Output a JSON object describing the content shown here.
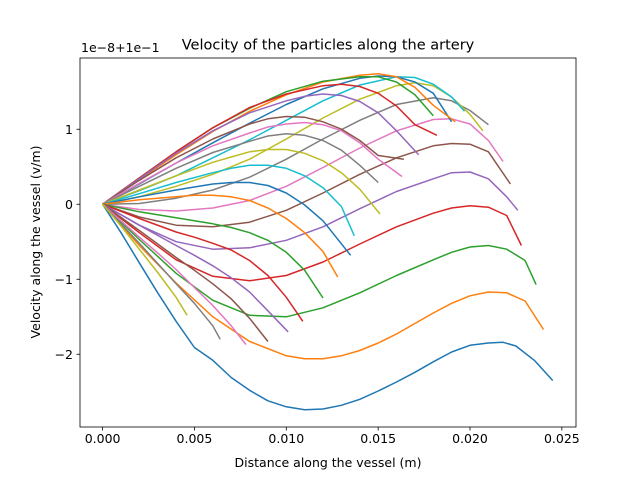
{
  "chart_data": {
    "type": "line",
    "title": "Velocity of the particles along the artery",
    "xlabel": "Distance along the vessel (m)",
    "ylabel": "Velocity along the vessel (v/m)",
    "offset_label": "1e−8+1e−1",
    "xlim": [
      -0.00123,
      0.02577
    ],
    "ylim": [
      -2.97,
      1.95
    ],
    "x_ticks": [
      0.0,
      0.005,
      0.01,
      0.015,
      0.02,
      0.025
    ],
    "x_tick_labels": [
      "0.000",
      "0.005",
      "0.010",
      "0.015",
      "0.020",
      "0.025"
    ],
    "y_ticks": [
      -2,
      -1,
      0,
      1
    ],
    "y_tick_labels": [
      "−2",
      "−1",
      "0",
      "1"
    ],
    "grid": false,
    "colors": {
      "C0": "#1f77b4",
      "C1": "#ff7f0e",
      "C2": "#2ca02c",
      "C3": "#d62728",
      "C4": "#9467bd",
      "C5": "#8c564b",
      "C6": "#e377c2",
      "C7": "#7f7f7f",
      "C8": "#bcbd22",
      "C9": "#17becf"
    },
    "series": [
      {
        "color": "C0",
        "x": [
          0,
          0.001,
          0.002,
          0.003,
          0.004,
          0.005,
          0.006,
          0.007,
          0.008,
          0.009,
          0.01,
          0.011,
          0.012,
          0.013,
          0.014,
          0.015,
          0.016,
          0.017,
          0.018,
          0.019,
          0.02,
          0.021,
          0.0218,
          0.0225,
          0.0235,
          0.0245
        ],
        "y": [
          0,
          -0.38,
          -0.78,
          -1.18,
          -1.56,
          -1.91,
          -2.08,
          -2.31,
          -2.48,
          -2.62,
          -2.7,
          -2.74,
          -2.73,
          -2.68,
          -2.6,
          -2.49,
          -2.37,
          -2.24,
          -2.1,
          -1.97,
          -1.88,
          -1.85,
          -1.84,
          -1.89,
          -2.08,
          -2.35
        ]
      },
      {
        "color": "C1",
        "x": [
          0,
          0.002,
          0.004,
          0.006,
          0.008,
          0.01,
          0.011,
          0.012,
          0.013,
          0.014,
          0.015,
          0.016,
          0.017,
          0.018,
          0.019,
          0.02,
          0.021,
          0.022,
          0.023,
          0.024
        ],
        "y": [
          0,
          -0.55,
          -1.05,
          -1.5,
          -1.83,
          -2.02,
          -2.06,
          -2.06,
          -2.02,
          -1.95,
          -1.85,
          -1.73,
          -1.59,
          -1.45,
          -1.32,
          -1.22,
          -1.17,
          -1.18,
          -1.29,
          -1.67
        ]
      },
      {
        "color": "C2",
        "x": [
          0,
          0.002,
          0.004,
          0.006,
          0.008,
          0.01,
          0.012,
          0.014,
          0.016,
          0.018,
          0.019,
          0.02,
          0.021,
          0.022,
          0.023,
          0.0236
        ],
        "y": [
          0,
          -0.47,
          -0.92,
          -1.28,
          -1.48,
          -1.5,
          -1.38,
          -1.18,
          -0.95,
          -0.74,
          -0.64,
          -0.57,
          -0.55,
          -0.6,
          -0.75,
          -1.07
        ]
      },
      {
        "color": "C3",
        "x": [
          0,
          0.002,
          0.004,
          0.006,
          0.008,
          0.01,
          0.012,
          0.014,
          0.016,
          0.018,
          0.019,
          0.02,
          0.021,
          0.022,
          0.0228
        ],
        "y": [
          0,
          -0.38,
          -0.74,
          -0.96,
          -1.02,
          -0.95,
          -0.77,
          -0.53,
          -0.3,
          -0.12,
          -0.05,
          -0.02,
          -0.04,
          -0.15,
          -0.55
        ]
      },
      {
        "color": "C4",
        "x": [
          0,
          0.002,
          0.004,
          0.006,
          0.008,
          0.01,
          0.012,
          0.014,
          0.016,
          0.018,
          0.019,
          0.02,
          0.021,
          0.022,
          0.0226
        ],
        "y": [
          0,
          -0.28,
          -0.5,
          -0.6,
          -0.58,
          -0.48,
          -0.3,
          -0.06,
          0.17,
          0.34,
          0.42,
          0.43,
          0.34,
          0.1,
          -0.08
        ]
      },
      {
        "color": "C5",
        "x": [
          0,
          0.002,
          0.004,
          0.006,
          0.008,
          0.01,
          0.012,
          0.014,
          0.016,
          0.018,
          0.019,
          0.02,
          0.021,
          0.0222
        ],
        "y": [
          0,
          -0.17,
          -0.28,
          -0.3,
          -0.24,
          -0.08,
          0.15,
          0.4,
          0.62,
          0.78,
          0.81,
          0.8,
          0.7,
          0.27
        ]
      },
      {
        "color": "C6",
        "x": [
          0,
          0.002,
          0.004,
          0.006,
          0.008,
          0.01,
          0.012,
          0.014,
          0.016,
          0.018,
          0.019,
          0.02,
          0.021,
          0.0218
        ],
        "y": [
          0,
          -0.07,
          -0.09,
          -0.05,
          0.05,
          0.24,
          0.49,
          0.75,
          0.98,
          1.13,
          1.14,
          1.07,
          0.85,
          0.57
        ]
      },
      {
        "color": "C7",
        "x": [
          0,
          0.002,
          0.004,
          0.006,
          0.008,
          0.01,
          0.012,
          0.014,
          0.016,
          0.018,
          0.019,
          0.02,
          0.021
        ],
        "y": [
          0,
          0.01,
          0.08,
          0.19,
          0.36,
          0.6,
          0.87,
          1.12,
          1.33,
          1.42,
          1.38,
          1.25,
          1.06
        ]
      },
      {
        "color": "C8",
        "x": [
          0,
          0.002,
          0.004,
          0.006,
          0.008,
          0.01,
          0.012,
          0.014,
          0.016,
          0.017,
          0.018,
          0.019,
          0.02,
          0.0207
        ],
        "y": [
          0,
          0.1,
          0.24,
          0.4,
          0.6,
          0.87,
          1.15,
          1.4,
          1.58,
          1.62,
          1.58,
          1.43,
          1.2,
          0.98
        ]
      },
      {
        "color": "C9",
        "x": [
          0,
          0.002,
          0.004,
          0.006,
          0.008,
          0.01,
          0.012,
          0.014,
          0.016,
          0.017,
          0.018,
          0.019,
          0.0197
        ],
        "y": [
          0,
          0.18,
          0.38,
          0.62,
          0.86,
          1.12,
          1.38,
          1.59,
          1.7,
          1.69,
          1.6,
          1.43,
          1.24
        ]
      },
      {
        "color": "C0",
        "x": [
          0,
          0.002,
          0.004,
          0.006,
          0.008,
          0.01,
          0.012,
          0.014,
          0.015,
          0.016,
          0.017,
          0.018,
          0.019
        ],
        "y": [
          0,
          0.27,
          0.55,
          0.82,
          1.08,
          1.33,
          1.54,
          1.68,
          1.71,
          1.7,
          1.63,
          1.48,
          1.1
        ]
      },
      {
        "color": "C1",
        "x": [
          0,
          0.002,
          0.004,
          0.006,
          0.008,
          0.01,
          0.012,
          0.014,
          0.015,
          0.016,
          0.017,
          0.018,
          0.0192
        ],
        "y": [
          0,
          0.33,
          0.66,
          0.97,
          1.24,
          1.46,
          1.63,
          1.72,
          1.74,
          1.7,
          1.56,
          1.32,
          1.1
        ]
      },
      {
        "color": "C2",
        "x": [
          0,
          0.002,
          0.004,
          0.006,
          0.008,
          0.01,
          0.012,
          0.014,
          0.015,
          0.016,
          0.017,
          0.018
        ],
        "y": [
          0,
          0.35,
          0.7,
          1.02,
          1.28,
          1.5,
          1.64,
          1.7,
          1.7,
          1.63,
          1.46,
          1.18
        ]
      },
      {
        "color": "C3",
        "x": [
          0,
          0.002,
          0.004,
          0.006,
          0.008,
          0.01,
          0.012,
          0.013,
          0.014,
          0.015,
          0.016,
          0.017,
          0.0182
        ],
        "y": [
          0,
          0.35,
          0.7,
          1.02,
          1.29,
          1.47,
          1.58,
          1.6,
          1.57,
          1.48,
          1.31,
          1.06,
          0.92
        ]
      },
      {
        "color": "C4",
        "x": [
          0,
          0.002,
          0.004,
          0.006,
          0.008,
          0.01,
          0.011,
          0.012,
          0.013,
          0.014,
          0.015,
          0.016,
          0.0172
        ],
        "y": [
          0,
          0.34,
          0.68,
          0.98,
          1.22,
          1.38,
          1.44,
          1.47,
          1.45,
          1.37,
          1.22,
          0.98,
          0.66
        ]
      },
      {
        "color": "C5",
        "x": [
          0,
          0.002,
          0.004,
          0.006,
          0.008,
          0.009,
          0.01,
          0.011,
          0.012,
          0.013,
          0.014,
          0.015,
          0.0164
        ],
        "y": [
          0,
          0.32,
          0.62,
          0.87,
          1.07,
          1.14,
          1.17,
          1.16,
          1.1,
          1.0,
          0.85,
          0.65,
          0.6
        ]
      },
      {
        "color": "C6",
        "x": [
          0,
          0.002,
          0.004,
          0.006,
          0.008,
          0.009,
          0.01,
          0.011,
          0.012,
          0.013,
          0.014,
          0.015,
          0.0163
        ],
        "y": [
          0,
          0.28,
          0.55,
          0.78,
          0.95,
          1.03,
          1.07,
          1.09,
          1.06,
          0.98,
          0.82,
          0.6,
          0.37
        ]
      },
      {
        "color": "C7",
        "x": [
          0,
          0.002,
          0.004,
          0.006,
          0.008,
          0.009,
          0.01,
          0.011,
          0.012,
          0.013,
          0.014,
          0.015
        ],
        "y": [
          0,
          0.24,
          0.48,
          0.69,
          0.84,
          0.91,
          0.94,
          0.92,
          0.85,
          0.72,
          0.52,
          0.29
        ]
      },
      {
        "color": "C8",
        "x": [
          0,
          0.002,
          0.004,
          0.006,
          0.007,
          0.008,
          0.009,
          0.01,
          0.011,
          0.012,
          0.013,
          0.014,
          0.0151
        ],
        "y": [
          0,
          0.19,
          0.38,
          0.56,
          0.63,
          0.7,
          0.73,
          0.73,
          0.68,
          0.58,
          0.42,
          0.2,
          -0.13
        ]
      },
      {
        "color": "C9",
        "x": [
          0,
          0.002,
          0.004,
          0.006,
          0.007,
          0.008,
          0.009,
          0.01,
          0.011,
          0.012,
          0.013,
          0.0137
        ],
        "y": [
          0,
          0.14,
          0.29,
          0.42,
          0.48,
          0.52,
          0.52,
          0.48,
          0.38,
          0.22,
          -0.03,
          -0.42
        ]
      },
      {
        "color": "C0",
        "x": [
          0,
          0.002,
          0.004,
          0.005,
          0.006,
          0.007,
          0.008,
          0.009,
          0.01,
          0.011,
          0.012,
          0.0135
        ],
        "y": [
          0,
          0.1,
          0.19,
          0.23,
          0.27,
          0.29,
          0.29,
          0.25,
          0.15,
          -0.01,
          -0.22,
          -0.68
        ]
      },
      {
        "color": "C1",
        "x": [
          0,
          0.001,
          0.002,
          0.003,
          0.004,
          0.005,
          0.006,
          0.007,
          0.008,
          0.009,
          0.01,
          0.011,
          0.012,
          0.0128
        ],
        "y": [
          0,
          0.03,
          0.06,
          0.08,
          0.1,
          0.12,
          0.12,
          0.1,
          0.05,
          -0.05,
          -0.19,
          -0.38,
          -0.63,
          -0.97
        ]
      },
      {
        "color": "C2",
        "x": [
          0,
          0.002,
          0.004,
          0.006,
          0.007,
          0.008,
          0.009,
          0.01,
          0.011,
          0.012
        ],
        "y": [
          0,
          -0.1,
          -0.18,
          -0.26,
          -0.31,
          -0.38,
          -0.48,
          -0.64,
          -0.88,
          -1.25
        ]
      },
      {
        "color": "C3",
        "x": [
          0,
          0.002,
          0.004,
          0.005,
          0.006,
          0.007,
          0.008,
          0.009,
          0.01,
          0.0109
        ],
        "y": [
          0,
          -0.19,
          -0.37,
          -0.44,
          -0.52,
          -0.61,
          -0.75,
          -0.95,
          -1.24,
          -1.56
        ]
      },
      {
        "color": "C4",
        "x": [
          0,
          0.002,
          0.004,
          0.005,
          0.006,
          0.007,
          0.008,
          0.009,
          0.0101
        ],
        "y": [
          0,
          -0.28,
          -0.55,
          -0.68,
          -0.82,
          -0.98,
          -1.17,
          -1.42,
          -1.7
        ]
      },
      {
        "color": "C5",
        "x": [
          0,
          0.002,
          0.004,
          0.005,
          0.006,
          0.007,
          0.008,
          0.009
        ],
        "y": [
          0,
          -0.35,
          -0.71,
          -0.88,
          -1.06,
          -1.26,
          -1.52,
          -1.83
        ]
      },
      {
        "color": "C6",
        "x": [
          0,
          0.001,
          0.002,
          0.003,
          0.004,
          0.005,
          0.006,
          0.007,
          0.0078
        ],
        "y": [
          0,
          -0.22,
          -0.44,
          -0.65,
          -0.87,
          -1.11,
          -1.35,
          -1.62,
          -1.87
        ]
      },
      {
        "color": "C7",
        "x": [
          0,
          0.001,
          0.002,
          0.003,
          0.004,
          0.005,
          0.006,
          0.0064
        ],
        "y": [
          0,
          -0.26,
          -0.52,
          -0.79,
          -1.06,
          -1.32,
          -1.62,
          -1.8
        ]
      },
      {
        "color": "C8",
        "x": [
          0,
          0.001,
          0.002,
          0.003,
          0.004,
          0.0046
        ],
        "y": [
          0,
          -0.29,
          -0.6,
          -0.91,
          -1.24,
          -1.48
        ]
      }
    ]
  }
}
